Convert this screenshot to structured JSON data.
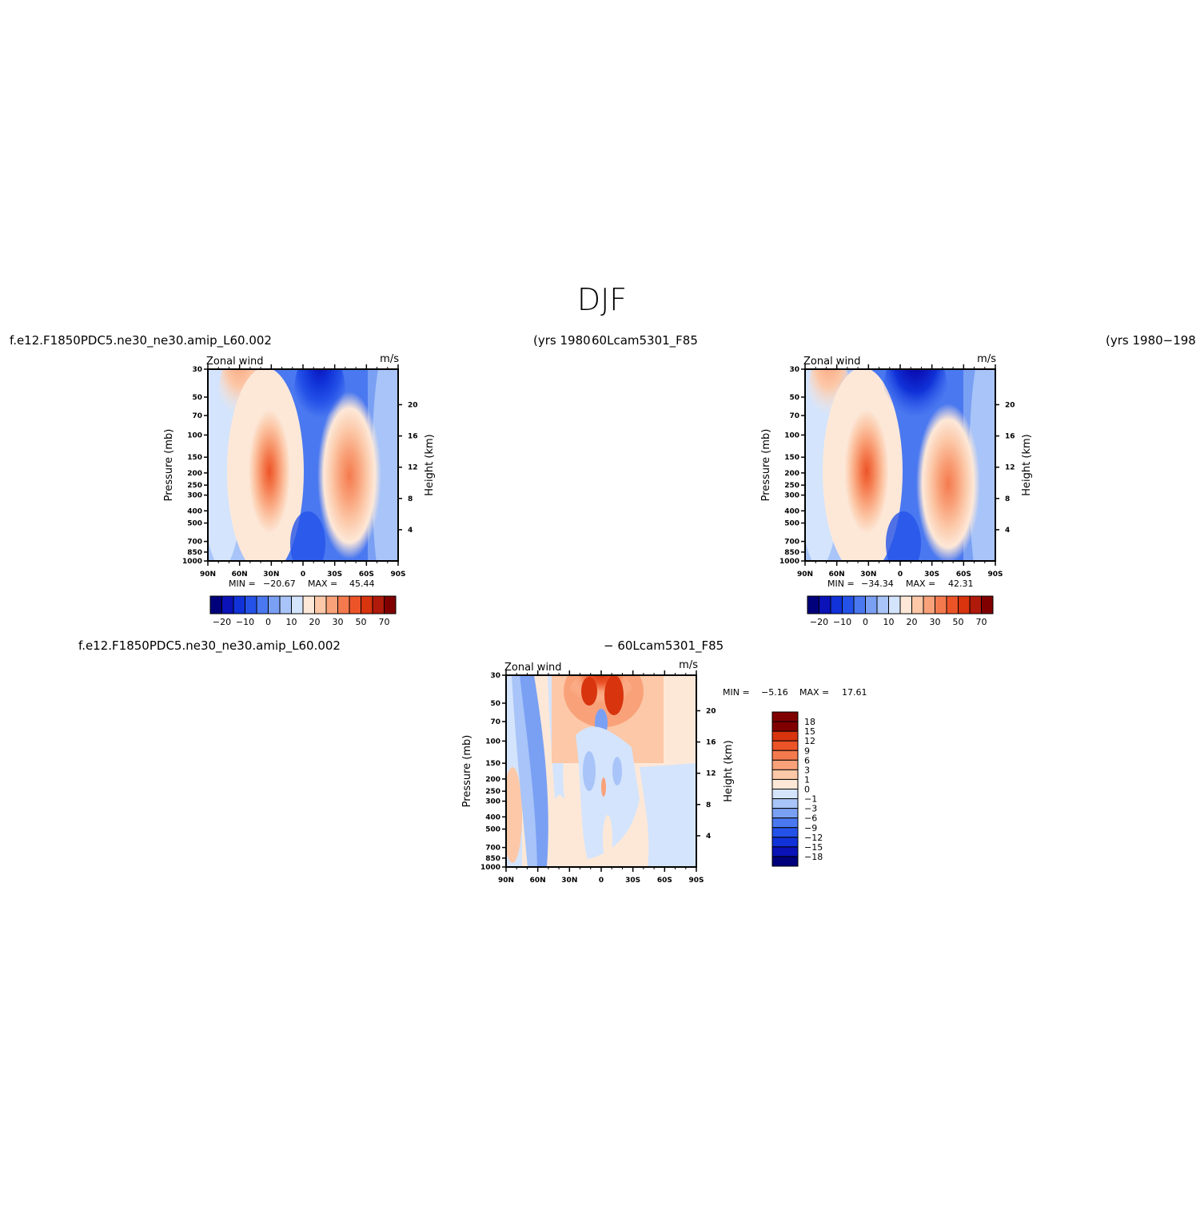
{
  "page": {
    "title": "DJF",
    "case_label": "f.e12.F1850PDC5.ne30_ne30.amip_L60.002",
    "years_label_left": "(yrs 1980",
    "control_label": "60Lcam5301_F85",
    "years_label_right": "(yrs 1980−198",
    "diff_case_label": "f.e12.F1850PDC5.ne30_ne30.amip_L60.002",
    "diff_control_label": "− 60Lcam5301_F85"
  },
  "colors": {
    "full_levels": [
      "#00007a",
      "#0a12b8",
      "#1032d8",
      "#2452e8",
      "#4a78f0",
      "#7aa0f4",
      "#a8c4f8",
      "#d4e4fc",
      "#fde8d8",
      "#fcc8a8",
      "#f9a27a",
      "#f47a4e",
      "#ec5428",
      "#d8340e",
      "#b01a0a",
      "#800000"
    ],
    "diff_levels": [
      "#00007a",
      "#0a12b8",
      "#1032d8",
      "#2452e8",
      "#4a78f0",
      "#7aa0f4",
      "#a8c4f8",
      "#d4e4fc",
      "#fde8d8",
      "#fcc8a8",
      "#f9a27a",
      "#f47a4e",
      "#ec5428",
      "#d8340e",
      "#800000"
    ]
  },
  "chart_data": [
    {
      "type": "heatmap",
      "panel": "top-left",
      "title_left": "Zonal wind",
      "title_right": "m/s",
      "ylabel": "Pressure (mb)",
      "ylabel_right": "Height (km)",
      "xticks": [
        "90N",
        "60N",
        "30N",
        "0",
        "30S",
        "60S",
        "90S"
      ],
      "yticks": [
        "30",
        "50",
        "70",
        "100",
        "150",
        "200",
        "250",
        "300",
        "400",
        "500",
        "700",
        "850",
        "1000"
      ],
      "yticks_right": [
        "20",
        "16",
        "12",
        "8",
        "4"
      ],
      "ylim": [
        1000,
        30
      ],
      "stats": {
        "min_label": "MIN =",
        "min": "−20.67",
        "max_label": "MAX =",
        "max": "45.44"
      },
      "colorbar_labels": [
        "−20",
        "−10",
        "0",
        "10",
        "20",
        "30",
        "50",
        "70"
      ],
      "features": [
        {
          "kind": "westerly jet",
          "lat": 30,
          "hemisphere": "N",
          "pressure_mb": 200,
          "value": 45.44
        },
        {
          "kind": "westerly jet",
          "lat": 45,
          "hemisphere": "S",
          "pressure_mb": 250,
          "value": 32
        },
        {
          "kind": "easterly max",
          "lat": 15,
          "hemisphere": "S",
          "pressure_mb": 30,
          "value": -20.67
        }
      ]
    },
    {
      "type": "heatmap",
      "panel": "top-right",
      "title_left": "Zonal wind",
      "title_right": "m/s",
      "ylabel": "Pressure (mb)",
      "ylabel_right": "Height (km)",
      "xticks": [
        "90N",
        "60N",
        "30N",
        "0",
        "30S",
        "60S",
        "90S"
      ],
      "yticks": [
        "30",
        "50",
        "70",
        "100",
        "150",
        "200",
        "250",
        "300",
        "400",
        "500",
        "700",
        "850",
        "1000"
      ],
      "yticks_right": [
        "20",
        "16",
        "12",
        "8",
        "4"
      ],
      "ylim": [
        1000,
        30
      ],
      "stats": {
        "min_label": "MIN =",
        "min": "−34.34",
        "max_label": "MAX =",
        "max": "42.31"
      },
      "colorbar_labels": [
        "−20",
        "−10",
        "0",
        "10",
        "20",
        "30",
        "50",
        "70"
      ],
      "features": [
        {
          "kind": "westerly jet",
          "lat": 30,
          "hemisphere": "N",
          "pressure_mb": 200,
          "value": 42.31
        },
        {
          "kind": "westerly jet",
          "lat": 45,
          "hemisphere": "S",
          "pressure_mb": 250,
          "value": 33
        },
        {
          "kind": "easterly max",
          "lat": 15,
          "hemisphere": "S",
          "pressure_mb": 30,
          "value": -34.34
        }
      ]
    },
    {
      "type": "heatmap",
      "panel": "bottom-difference",
      "title_left": "Zonal wind",
      "title_right": "m/s",
      "ylabel": "Pressure (mb)",
      "ylabel_right": "Height (km)",
      "xticks": [
        "90N",
        "60N",
        "30N",
        "0",
        "30S",
        "60S",
        "90S"
      ],
      "yticks": [
        "30",
        "50",
        "70",
        "100",
        "150",
        "200",
        "250",
        "300",
        "400",
        "500",
        "700",
        "850",
        "1000"
      ],
      "yticks_right": [
        "20",
        "16",
        "12",
        "8",
        "4"
      ],
      "ylim": [
        1000,
        30
      ],
      "stats": {
        "min_label": "MIN =",
        "min": "−5.16",
        "max_label": "MAX =",
        "max": "17.61"
      },
      "colorbar_labels": [
        "18",
        "15",
        "12",
        "9",
        "6",
        "3",
        "1",
        "0",
        "−1",
        "−3",
        "−6",
        "−9",
        "−12",
        "−15",
        "−18"
      ]
    }
  ]
}
